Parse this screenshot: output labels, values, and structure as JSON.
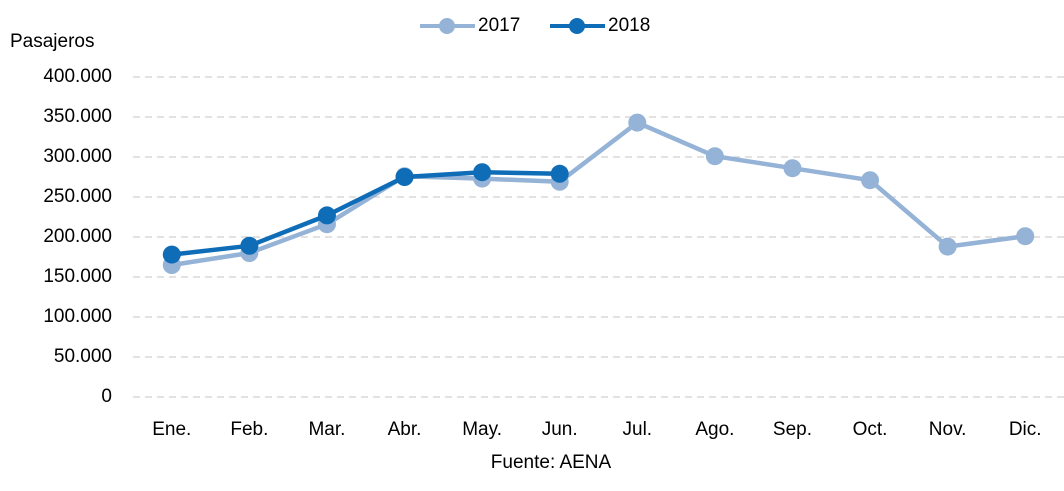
{
  "chart_data": {
    "type": "line",
    "y_label": "Pasajeros",
    "source": "Fuente: AENA",
    "categories": [
      "Ene.",
      "Feb.",
      "Mar.",
      "Abr.",
      "May.",
      "Jun.",
      "Jul.",
      "Ago.",
      "Sep.",
      "Oct.",
      "Nov.",
      "Dic."
    ],
    "series": [
      {
        "name": "2017",
        "color": "#95b3d7",
        "values": [
          165000,
          180000,
          216000,
          276000,
          273000,
          269000,
          343000,
          301000,
          286000,
          271000,
          188000,
          201000
        ]
      },
      {
        "name": "2018",
        "color": "#0f6cb6",
        "values": [
          178000,
          189000,
          227000,
          275000,
          281000,
          279000,
          null,
          null,
          null,
          null,
          null,
          null
        ]
      }
    ],
    "ylim": [
      0,
      400000
    ],
    "yticks": [
      0,
      {
        "value": 50000,
        "label": "50.000"
      },
      {
        "value": 100000,
        "label": "100.000"
      },
      {
        "value": 150000,
        "label": "150.000"
      },
      {
        "value": 200000,
        "label": "200.000"
      },
      {
        "value": 250000,
        "label": "250.000"
      },
      {
        "value": 300000,
        "label": "300.000"
      },
      {
        "value": 350000,
        "label": "350.000"
      },
      {
        "value": 400000,
        "label": "400.000"
      }
    ],
    "grid": true,
    "legend": "top"
  }
}
